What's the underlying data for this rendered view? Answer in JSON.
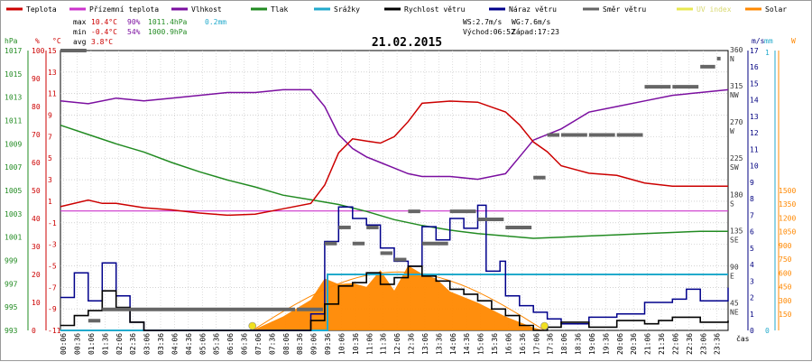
{
  "chart_data": {
    "type": "line",
    "title": "21.02.2015",
    "x_label": "čas",
    "x_ticks": [
      "00:06",
      "00:36",
      "01:06",
      "01:36",
      "02:06",
      "02:36",
      "03:06",
      "03:36",
      "04:06",
      "04:36",
      "05:06",
      "05:36",
      "06:06",
      "06:36",
      "07:06",
      "07:36",
      "08:06",
      "08:36",
      "09:06",
      "09:36",
      "10:06",
      "10:36",
      "11:06",
      "11:36",
      "12:06",
      "12:36",
      "13:06",
      "13:36",
      "14:06",
      "14:36",
      "15:06",
      "15:36",
      "16:06",
      "16:36",
      "17:06",
      "17:36",
      "18:06",
      "18:36",
      "19:06",
      "19:36",
      "20:06",
      "20:36",
      "21:06",
      "21:36",
      "22:06",
      "22:36",
      "23:06",
      "23:36"
    ],
    "legend": [
      {
        "name": "Teplota",
        "color": "#cc0000"
      },
      {
        "name": "Přízemní teplota",
        "color": "#cc33cc"
      },
      {
        "name": "Vlhkost",
        "color": "#7b0fa0"
      },
      {
        "name": "Tlak",
        "color": "#228b22"
      },
      {
        "name": "Srážky",
        "color": "#22aacc"
      },
      {
        "name": "Rychlost větru",
        "color": "#000000"
      },
      {
        "name": "Náraz větru",
        "color": "#00008b"
      },
      {
        "name": "Směr větru",
        "color": "#666666"
      },
      {
        "name": "UV index",
        "color": "#e8e850"
      },
      {
        "name": "Solar",
        "color": "#ff8800"
      }
    ],
    "stats": {
      "max_label": "max",
      "min_label": "min",
      "avg_label": "avg",
      "temp_max": "10.4°C",
      "temp_min": "-0.4°C",
      "temp_avg": "3.8°C",
      "hum_max": "90%",
      "hum_min": "54%",
      "press_max": "1011.4hPa",
      "press_min": "1000.9hPa",
      "rain": "0.2mm",
      "ws": "WS:2.7m/s",
      "wg": "WG:7.6m/s",
      "sunrise": "Východ:06:52",
      "sunset": "Západ:17:23"
    },
    "axes": {
      "hpa": {
        "unit": "hPa",
        "ticks": [
          "1017",
          "1015",
          "1013",
          "1011",
          "1009",
          "1007",
          "1005",
          "1003",
          "1001",
          "999",
          "997",
          "995",
          "993"
        ]
      },
      "pct": {
        "unit": "%",
        "ticks": [
          "100",
          "90",
          "80",
          "70",
          "60",
          "50",
          "40",
          "30",
          "20",
          "10",
          "0"
        ]
      },
      "degc": {
        "unit": "°C",
        "ticks": [
          "15",
          "13",
          "11",
          "9",
          "7",
          "5",
          "3",
          "1",
          "-1",
          "-3",
          "-5",
          "-7",
          "-9",
          "-11"
        ]
      },
      "dir": {
        "ticks": [
          "360",
          "N",
          "315",
          "NW",
          "270",
          "W",
          "225",
          "SW",
          "180",
          "S",
          "135",
          "SE",
          "90",
          "E",
          "45",
          "NE"
        ]
      },
      "ms": {
        "unit": "m/s",
        "ticks": [
          "17",
          "16",
          "15",
          "14",
          "13",
          "12",
          "11",
          "10",
          "9",
          "8",
          "7",
          "6",
          "5",
          "4",
          "3",
          "2",
          "1",
          "0"
        ]
      },
      "mm": {
        "unit": "mm",
        "ticks": [
          "1",
          "0"
        ]
      },
      "w": {
        "unit": "W",
        "ticks": [
          "1500",
          "1350",
          "1200",
          "1050",
          "900",
          "750",
          "600",
          "450",
          "300",
          "150"
        ]
      }
    },
    "series": [
      {
        "name": "Teplota",
        "unit": "°C",
        "x": [
          0,
          1,
          1.5,
          2,
          3,
          4,
          5,
          6,
          7,
          8,
          9,
          9.5,
          10,
          10.5,
          11,
          11.5,
          12,
          12.5,
          13,
          14,
          15,
          16,
          16.5,
          17,
          17.5,
          18,
          19,
          20,
          21,
          22,
          23,
          24
        ],
        "y": [
          0.5,
          1.1,
          0.8,
          0.8,
          0.4,
          0.2,
          -0.1,
          -0.3,
          -0.2,
          0.3,
          0.8,
          2.5,
          5.5,
          6.8,
          6.6,
          6.4,
          7.0,
          8.4,
          10.1,
          10.3,
          10.2,
          9.3,
          8.1,
          6.5,
          5.6,
          4.3,
          3.6,
          3.4,
          2.7,
          2.4,
          2.4,
          2.4
        ]
      },
      {
        "name": "Přízemní teplota",
        "unit": "°C",
        "x": [
          0,
          24
        ],
        "y": [
          0.1,
          0.1
        ]
      },
      {
        "name": "Vlhkost",
        "unit": "%",
        "x": [
          0,
          1,
          2,
          3,
          4,
          5,
          6,
          7,
          8,
          9,
          9.5,
          10,
          10.5,
          11,
          11.5,
          12,
          12.5,
          13,
          14,
          15,
          15.5,
          16,
          16.5,
          17,
          18,
          19,
          20,
          21,
          22,
          23,
          24
        ],
        "y": [
          82,
          81,
          83,
          82,
          83,
          84,
          85,
          85,
          86,
          86,
          80,
          70,
          65,
          62,
          60,
          58,
          56,
          55,
          55,
          54,
          55,
          56,
          62,
          68,
          72,
          78,
          80,
          82,
          84,
          85,
          86
        ]
      },
      {
        "name": "Tlak",
        "unit": "hPa",
        "x": [
          0,
          1,
          2,
          3,
          4,
          5,
          6,
          7,
          8,
          9,
          10,
          11,
          12,
          13,
          14,
          15,
          16,
          17,
          18,
          19,
          20,
          21,
          22,
          23,
          24
        ],
        "y": [
          1010.6,
          1009.8,
          1009,
          1008.3,
          1007.4,
          1006.6,
          1005.9,
          1005.3,
          1004.6,
          1004.2,
          1003.8,
          1003.2,
          1002.5,
          1002.0,
          1001.6,
          1001.3,
          1001.1,
          1000.9,
          1001.0,
          1001.1,
          1001.2,
          1001.3,
          1001.4,
          1001.5,
          1001.5
        ]
      },
      {
        "name": "Srážky",
        "unit": "mm",
        "x": [
          0,
          9.6,
          9.6,
          24
        ],
        "y": [
          0,
          0,
          0.2,
          0.2
        ]
      },
      {
        "name": "Rychlost větru",
        "unit": "m/s",
        "x": [
          0,
          0.5,
          1,
          1.5,
          2,
          2.5,
          3,
          8.5,
          9,
          9.5,
          10,
          10.5,
          11,
          11.5,
          12,
          12.5,
          13,
          13.5,
          14,
          14.5,
          15,
          15.5,
          16,
          16.5,
          17,
          17.5,
          18,
          19,
          20,
          21,
          21.5,
          22,
          23,
          24
        ],
        "y": [
          0.3,
          0.9,
          1.2,
          2.4,
          1.4,
          0.5,
          0,
          0,
          0.6,
          1.6,
          2.7,
          2.9,
          3.5,
          2.8,
          3.2,
          3.9,
          3.3,
          3.0,
          2.5,
          2.2,
          1.8,
          1.3,
          0.9,
          0.3,
          0,
          0.2,
          0.5,
          0.2,
          0.6,
          0.4,
          0.6,
          0.8,
          0.5,
          0.6
        ]
      },
      {
        "name": "Náraz větru",
        "unit": "m/s",
        "x": [
          0,
          0.5,
          1,
          1.5,
          2,
          2.5,
          3,
          8.5,
          9,
          9.5,
          10,
          10.5,
          11,
          11.5,
          12,
          12.5,
          13,
          13.5,
          14,
          14.5,
          15,
          15.3,
          15.8,
          16,
          16.5,
          17,
          17.5,
          18,
          19,
          20,
          21,
          22,
          22.5,
          23,
          24
        ],
        "y": [
          2.0,
          3.5,
          1.8,
          4.1,
          2.1,
          0.5,
          0,
          0,
          1.0,
          5.4,
          7.5,
          6.8,
          6.4,
          5.0,
          4.2,
          3.9,
          6.3,
          5.5,
          6.8,
          6.2,
          7.6,
          3.6,
          4.2,
          2.1,
          1.5,
          1.1,
          0.7,
          0.4,
          0.8,
          1.0,
          1.7,
          1.9,
          2.5,
          1.8,
          2.6
        ]
      },
      {
        "name": "Směr větru",
        "unit": "°",
        "x": [
          0,
          1,
          1.5,
          8.5,
          9.5,
          10,
          10.5,
          11,
          11.5,
          12,
          12.5,
          13,
          14,
          15,
          16,
          17,
          17.5,
          18,
          19,
          20,
          21,
          22,
          23,
          23.6
        ],
        "y": [
          360,
          24,
          38,
          38,
          120,
          140,
          120,
          140,
          108,
          100,
          160,
          120,
          160,
          150,
          140,
          202,
          255,
          255,
          255,
          255,
          315,
          315,
          340,
          350
        ]
      },
      {
        "name": "UV index",
        "unit": "",
        "x": [
          6.9,
          17.4
        ],
        "y": [
          0,
          0
        ]
      },
      {
        "name": "Solar",
        "unit": "W/m²",
        "x": [
          6.9,
          8,
          9,
          9.5,
          10,
          10.5,
          11,
          11.5,
          12,
          12.5,
          13,
          13.5,
          14,
          15,
          16,
          17,
          17.4
        ],
        "y": [
          0,
          150,
          330,
          560,
          500,
          510,
          470,
          650,
          430,
          700,
          610,
          560,
          420,
          300,
          150,
          30,
          0
        ]
      }
    ]
  }
}
